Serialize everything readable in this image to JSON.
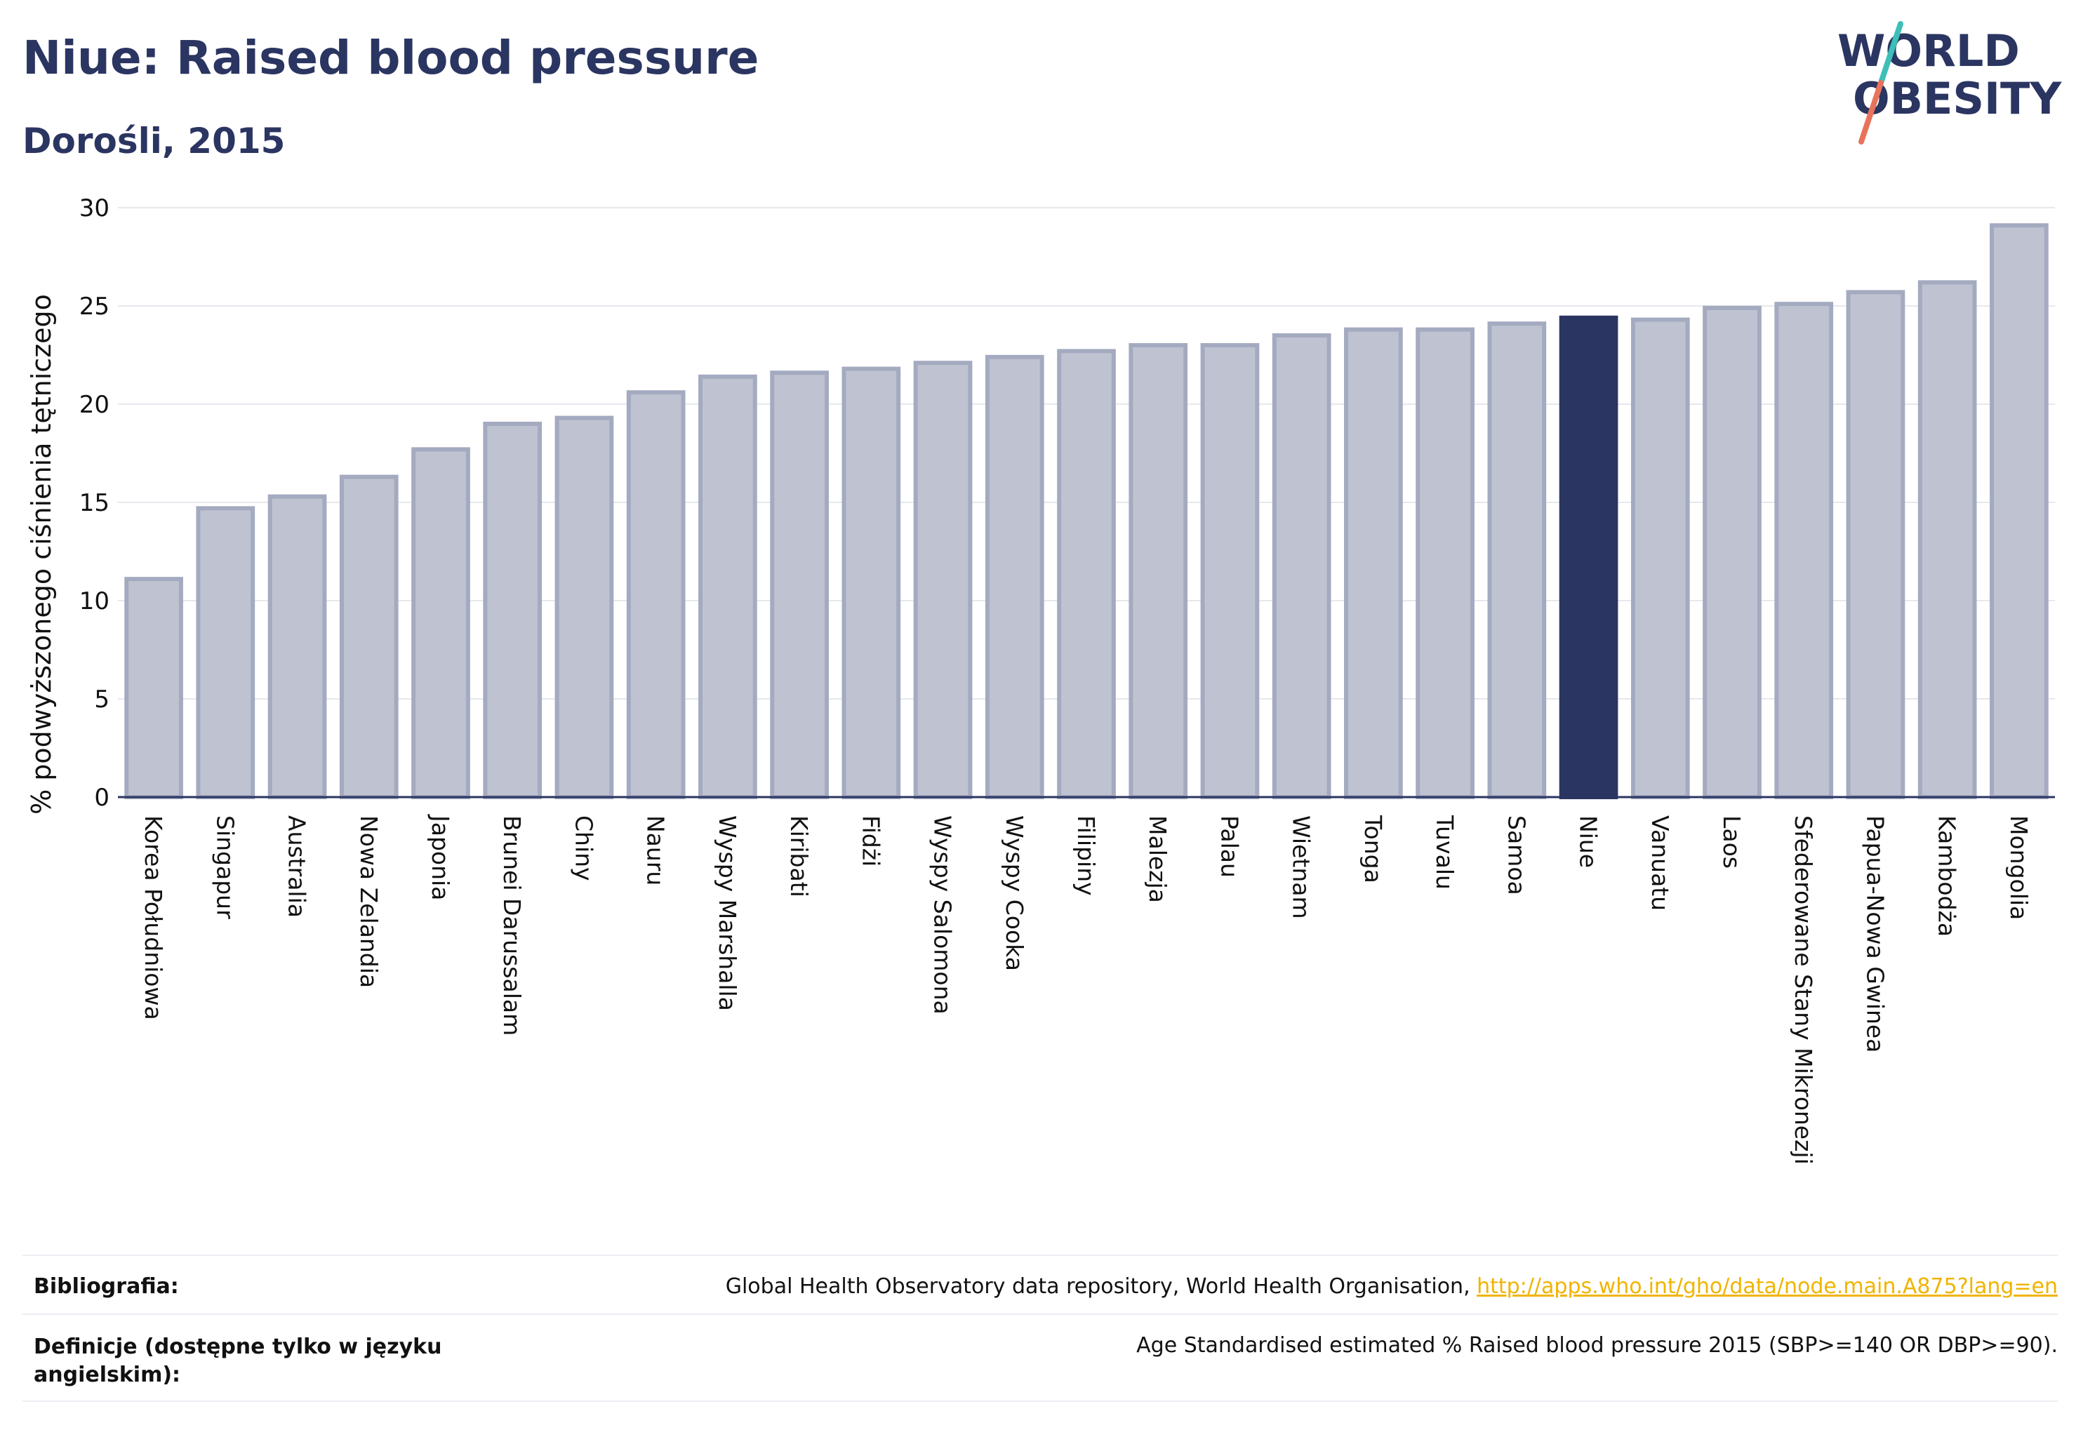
{
  "header": {
    "title": "Niue: Raised blood pressure",
    "subtitle": "Dorośli, 2015"
  },
  "logo": {
    "line1": "WORLD",
    "line2": "OBESITY",
    "colors": {
      "text": "#2b3561",
      "slash_top": "#3dbfb8",
      "slash_bottom": "#e8735c"
    }
  },
  "colors": {
    "bar": "#bfc3d1",
    "bar_border": "#a4aabf",
    "highlight": "#2b3561",
    "grid": "#e6e8ee",
    "axis": "#2b3561"
  },
  "chart_data": {
    "type": "bar",
    "title": "Niue: Raised blood pressure",
    "subtitle": "Dorośli, 2015",
    "xlabel": "",
    "ylabel": "% podwyższonego ciśnienia tętniczego",
    "ylim": [
      0,
      30
    ],
    "yticks": [
      0,
      5,
      10,
      15,
      20,
      25,
      30
    ],
    "grid": true,
    "highlight": "Niue",
    "categories": [
      "Korea Południowa",
      "Singapur",
      "Australia",
      "Nowa Zelandia",
      "Japonia",
      "Brunei Darussalam",
      "Chiny",
      "Nauru",
      "Wyspy Marshalla",
      "Kiribati",
      "Fidżi",
      "Wyspy Salomona",
      "Wyspy Cooka",
      "Filipiny",
      "Malezja",
      "Palau",
      "Wietnam",
      "Tonga",
      "Tuvalu",
      "Samoa",
      "Niue",
      "Vanuatu",
      "Laos",
      "Sfederowane Stany Mikronezji",
      "Papua-Nowa Gwinea",
      "Kambodża",
      "Mongolia"
    ],
    "values": [
      11.1,
      14.7,
      15.3,
      16.3,
      17.7,
      19.0,
      19.3,
      20.6,
      21.4,
      21.6,
      21.8,
      22.1,
      22.4,
      22.7,
      23.0,
      23.0,
      23.5,
      23.8,
      23.8,
      24.1,
      24.4,
      24.3,
      24.9,
      25.1,
      25.7,
      26.2,
      29.1
    ]
  },
  "footer": {
    "bibliography_label": "Bibliografia:",
    "bibliography_text": "Global Health Observatory data repository, World Health Organisation, ",
    "bibliography_link": "http://apps.who.int/gho/data/node.main.A875?lang=en",
    "definitions_label": "Definicje (dostępne tylko w języku angielskim):",
    "definitions_text": "Age Standardised estimated % Raised blood pressure 2015 (SBP>=140 OR DBP>=90)."
  }
}
